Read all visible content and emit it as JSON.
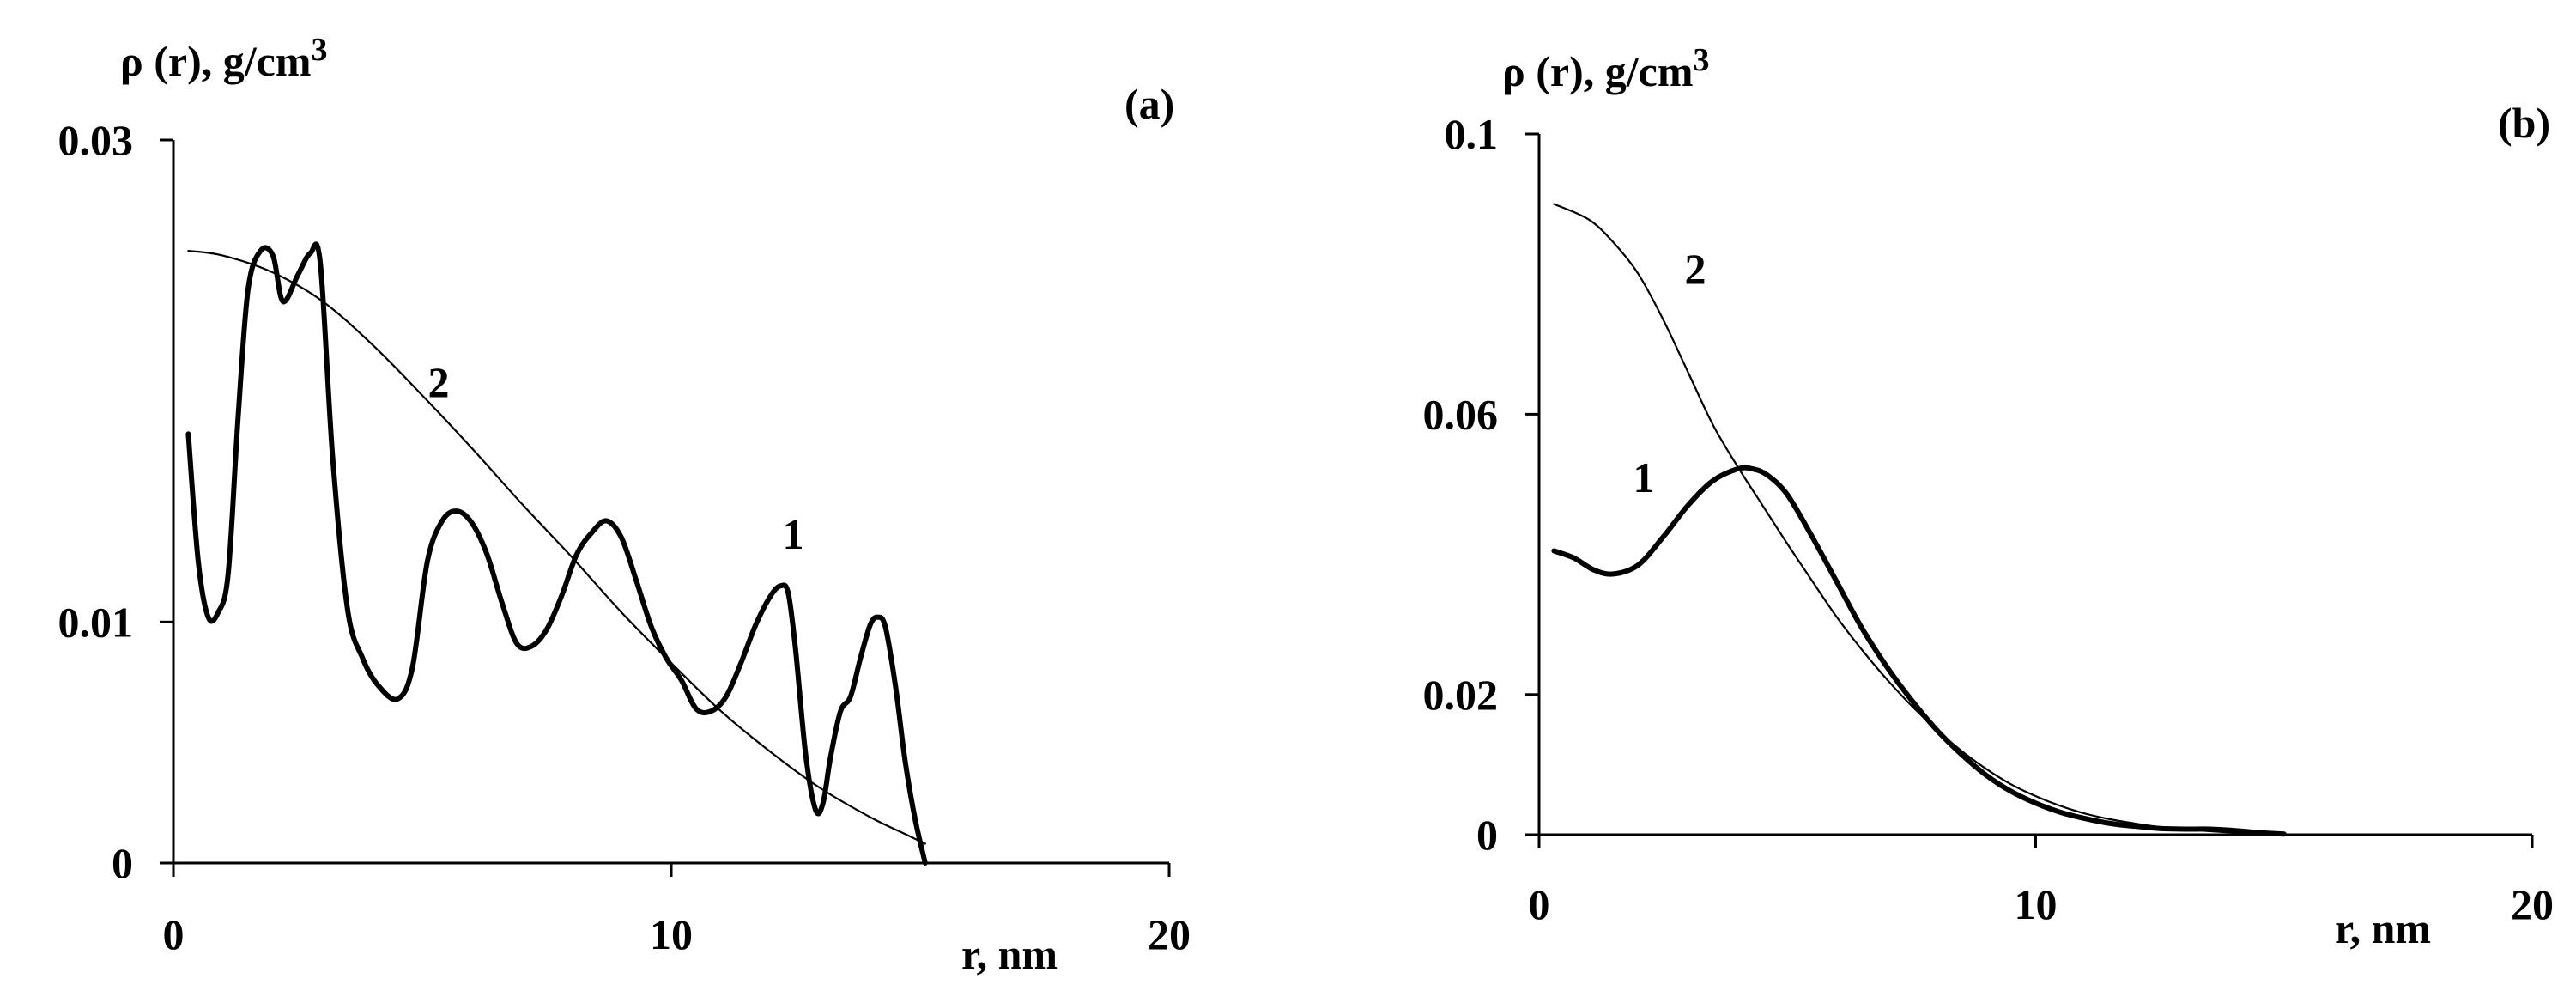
{
  "chart_data": [
    {
      "type": "line",
      "panel_label": "(a)",
      "ylabel": "ρ (r), g/cm",
      "ylabel_sup": "3",
      "xlabel": "r, nm",
      "xlim": [
        0,
        20
      ],
      "ylim": [
        0,
        0.03
      ],
      "xticks": [
        0,
        10,
        20
      ],
      "xtick_labels": [
        "0",
        "10",
        "20"
      ],
      "yticks": [
        0,
        0.01,
        0.03
      ],
      "ytick_labels": [
        "0",
        "0.01",
        "0.03"
      ],
      "grid": false,
      "series": [
        {
          "name": "1",
          "style": "thick",
          "x": [
            0.3,
            0.5,
            0.7,
            0.9,
            1.1,
            1.3,
            1.5,
            1.75,
            2.0,
            2.2,
            2.5,
            2.75,
            2.95,
            3.2,
            3.5,
            3.8,
            4.1,
            4.5,
            4.8,
            5.1,
            5.4,
            5.7,
            6.0,
            6.3,
            6.6,
            6.9,
            7.2,
            7.5,
            7.8,
            8.1,
            8.4,
            8.7,
            9.0,
            9.3,
            9.6,
            9.9,
            10.2,
            10.5,
            10.8,
            11.1,
            11.4,
            11.7,
            12.0,
            12.2,
            12.35,
            12.5,
            12.7,
            12.9,
            13.05,
            13.2,
            13.4,
            13.6,
            13.8,
            14.0,
            14.15,
            14.3,
            14.5,
            14.7,
            14.9,
            15.1
          ],
          "y": [
            0.0178,
            0.0125,
            0.0102,
            0.0104,
            0.012,
            0.0185,
            0.0238,
            0.0254,
            0.0252,
            0.0233,
            0.0244,
            0.0253,
            0.0249,
            0.0168,
            0.0105,
            0.0085,
            0.0074,
            0.0068,
            0.0081,
            0.0125,
            0.0142,
            0.0146,
            0.0141,
            0.0128,
            0.0108,
            0.0091,
            0.009,
            0.0097,
            0.0111,
            0.0128,
            0.0137,
            0.0142,
            0.0135,
            0.0117,
            0.0098,
            0.0085,
            0.0076,
            0.0064,
            0.0063,
            0.0069,
            0.0083,
            0.0099,
            0.0111,
            0.0115,
            0.0112,
            0.0088,
            0.0045,
            0.0022,
            0.0025,
            0.0044,
            0.0063,
            0.0069,
            0.0085,
            0.0099,
            0.0102,
            0.0098,
            0.0074,
            0.0042,
            0.0018,
            0.0
          ]
        },
        {
          "name": "2",
          "style": "thin",
          "x": [
            0.3,
            1,
            2,
            3,
            4,
            5,
            6,
            7,
            8,
            9,
            10,
            11,
            12,
            13,
            14,
            14.7,
            15.1
          ],
          "y": [
            0.0254,
            0.0252,
            0.0245,
            0.0233,
            0.0215,
            0.0194,
            0.0172,
            0.0149,
            0.0127,
            0.0104,
            0.0083,
            0.0063,
            0.0046,
            0.0031,
            0.0019,
            0.0012,
            0.0008
          ]
        }
      ]
    },
    {
      "type": "line",
      "panel_label": "(b)",
      "ylabel": "ρ (r), g/cm",
      "ylabel_sup": "3",
      "xlabel": "r, nm",
      "xlim": [
        0,
        20
      ],
      "ylim": [
        0,
        0.1
      ],
      "xticks": [
        0,
        10,
        20
      ],
      "xtick_labels": [
        "0",
        "10",
        "20"
      ],
      "yticks": [
        0,
        0.02,
        0.06,
        0.1
      ],
      "ytick_labels": [
        "0",
        "0.02",
        "0.06",
        "0.1"
      ],
      "grid": false,
      "series": [
        {
          "name": "1",
          "style": "thick",
          "x": [
            0.3,
            0.7,
            1.1,
            1.5,
            2.0,
            2.5,
            3.0,
            3.5,
            4.0,
            4.3,
            4.6,
            5.0,
            5.5,
            6.0,
            6.5,
            7.0,
            7.5,
            8.0,
            8.5,
            9.0,
            9.5,
            10.0,
            10.5,
            11.0,
            11.5,
            12.0,
            12.5,
            13.0,
            13.5,
            14.0,
            14.5,
            15.0
          ],
          "y": [
            0.0405,
            0.0395,
            0.0378,
            0.0372,
            0.0385,
            0.0425,
            0.047,
            0.0505,
            0.0522,
            0.0522,
            0.0513,
            0.0485,
            0.0425,
            0.036,
            0.0295,
            0.024,
            0.0192,
            0.015,
            0.0115,
            0.0085,
            0.0062,
            0.0045,
            0.0032,
            0.0023,
            0.0016,
            0.0012,
            0.0009,
            0.0008,
            0.0008,
            0.0006,
            0.0003,
            0.0001
          ]
        },
        {
          "name": "2",
          "style": "thin",
          "x": [
            0.3,
            1.0,
            1.5,
            2.0,
            2.5,
            3.0,
            3.5,
            4.0,
            4.5,
            5.0,
            5.5,
            6.0,
            6.5,
            7.0,
            7.5,
            8.0,
            8.5,
            9.0,
            9.5,
            10.0,
            10.5,
            11.0,
            11.5,
            12.0,
            12.5,
            13.0,
            13.5,
            14.0,
            14.5,
            15.0
          ],
          "y": [
            0.09,
            0.0878,
            0.0845,
            0.08,
            0.0735,
            0.066,
            0.0585,
            0.0525,
            0.047,
            0.0415,
            0.0362,
            0.031,
            0.0264,
            0.0222,
            0.0184,
            0.015,
            0.012,
            0.0094,
            0.0072,
            0.0055,
            0.0041,
            0.003,
            0.0022,
            0.0016,
            0.0011,
            0.0008,
            0.0005,
            0.0003,
            0.0002,
            0.0001
          ]
        }
      ]
    }
  ]
}
